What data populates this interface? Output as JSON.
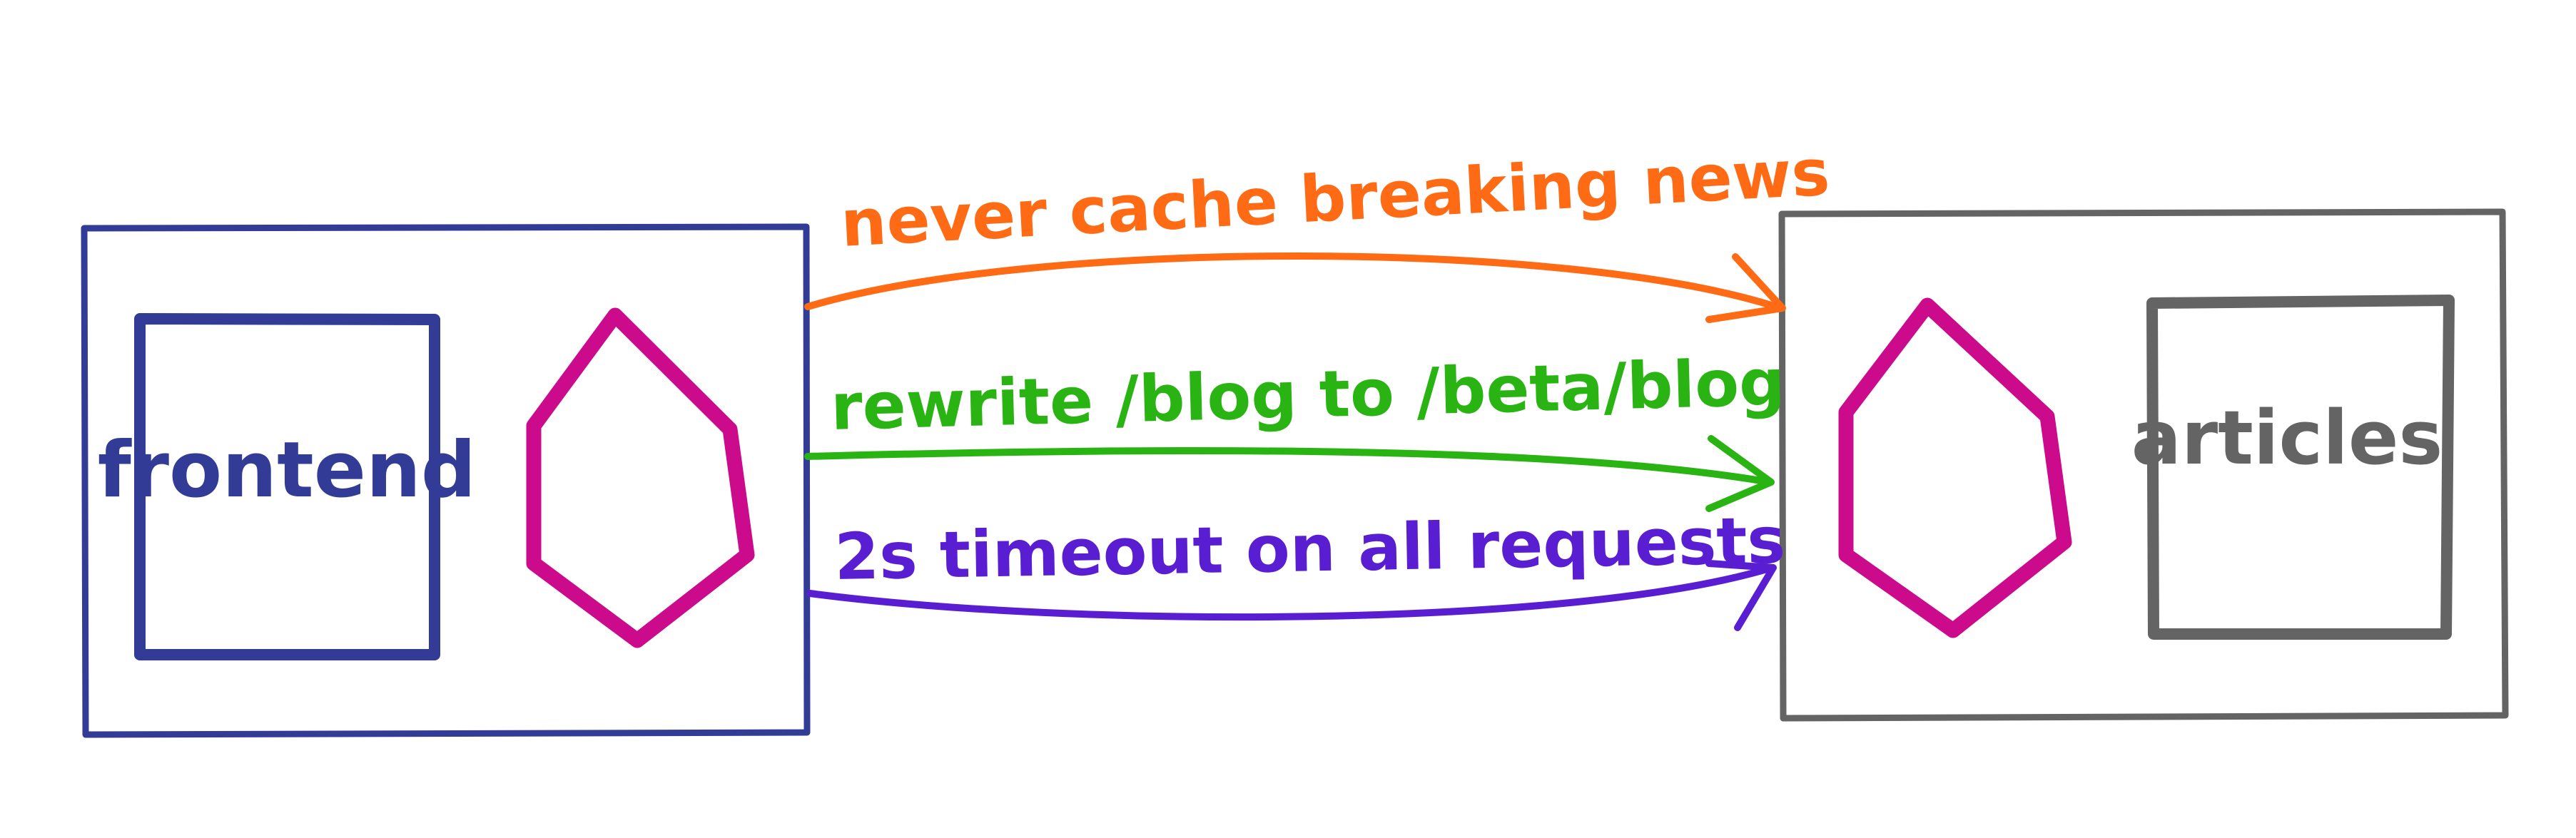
{
  "frontend": {
    "label": "frontend",
    "color": "#323c96"
  },
  "articles": {
    "label": "articles",
    "color": "#646464"
  },
  "proxy_color": "#cc0a8c",
  "routes": [
    {
      "name": "cache-rule",
      "label": "never cache breaking news",
      "color": "#ff6a14"
    },
    {
      "name": "rewrite-rule",
      "label": "rewrite /blog to /beta/blog",
      "color": "#2ab414"
    },
    {
      "name": "timeout-rule",
      "label": "2s timeout on all requests",
      "color": "#5a1ed2"
    }
  ]
}
